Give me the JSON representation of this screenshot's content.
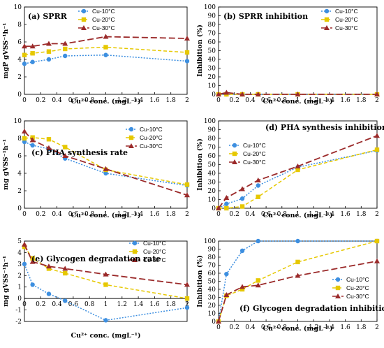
{
  "chart_data": [
    {
      "id": "a",
      "type": "line",
      "title": "(a) SPRR",
      "xlabel": "Cu²⁺ conc. (mgL⁻¹)",
      "ylabel": "mgP gVSS⁻¹h⁻¹",
      "xlim": [
        0,
        2
      ],
      "ylim": [
        0,
        10
      ],
      "xticks": [
        "0",
        "0.2",
        "0.4",
        "0.6",
        "0.8",
        "1",
        "1.2",
        "1.4",
        "1.6",
        "1.8",
        "2"
      ],
      "yticks": [
        "0",
        "2",
        "4",
        "6",
        "8",
        "10"
      ],
      "legend_position": "top-center",
      "grid": false,
      "x": [
        0,
        0.1,
        0.3,
        0.5,
        1,
        2
      ],
      "series": [
        {
          "name": "Cu-10°C",
          "values": [
            3.5,
            3.7,
            4.0,
            4.4,
            4.5,
            3.8
          ]
        },
        {
          "name": "Cu-20°C",
          "values": [
            4.5,
            4.7,
            4.9,
            5.2,
            5.4,
            4.8
          ]
        },
        {
          "name": "Cu-30°C",
          "values": [
            5.5,
            5.5,
            5.8,
            5.8,
            6.6,
            6.4
          ]
        }
      ]
    },
    {
      "id": "b",
      "type": "line",
      "title": "(b) SPRR inhibition",
      "xlabel": "Cu²⁺ conc. (mgL⁻¹)",
      "ylabel": "Inhibition (%)",
      "xlim": [
        0,
        2
      ],
      "ylim": [
        0,
        100
      ],
      "xticks": [
        "0",
        "0.2",
        "0.4",
        "0.6",
        "0.8",
        "1",
        "1.2",
        "1.4",
        "1.6",
        "1.8",
        "2"
      ],
      "yticks": [
        "0",
        "10",
        "20",
        "30",
        "40",
        "50",
        "60",
        "70",
        "80",
        "90",
        "100"
      ],
      "legend_position": "top-right",
      "grid": false,
      "x": [
        0,
        0.1,
        0.3,
        0.5,
        1,
        2
      ],
      "series": [
        {
          "name": "Cu-10°C",
          "values": [
            0,
            0,
            0,
            0,
            0,
            0
          ]
        },
        {
          "name": "Cu-20°C",
          "values": [
            0,
            0,
            0,
            0,
            0,
            0
          ]
        },
        {
          "name": "Cu-30°C",
          "values": [
            0,
            2,
            0,
            0,
            0,
            0
          ]
        }
      ]
    },
    {
      "id": "c",
      "type": "line",
      "title": "(c) PHA synthesis rate",
      "xlabel": "Cu²⁺ conc. (mgL⁻¹)",
      "ylabel": "mg gVSS⁻¹h⁻¹",
      "xlim": [
        0,
        2
      ],
      "ylim": [
        0,
        10
      ],
      "xticks": [
        "0",
        "0.2",
        "0.4",
        "0.6",
        "0.8",
        "1",
        "1.2",
        "1.4",
        "1.6",
        "1.8",
        "2"
      ],
      "yticks": [
        "0",
        "2",
        "4",
        "6",
        "8",
        "10"
      ],
      "legend_position": "top-right",
      "grid": false,
      "x": [
        0,
        0.1,
        0.3,
        0.5,
        1,
        2
      ],
      "series": [
        {
          "name": "Cu-10°C",
          "values": [
            7.6,
            7.2,
            6.8,
            5.7,
            4.0,
            2.6
          ]
        },
        {
          "name": "Cu-20°C",
          "values": [
            8.0,
            8.1,
            7.9,
            7.0,
            4.4,
            2.7
          ]
        },
        {
          "name": "Cu-30°C",
          "values": [
            8.8,
            7.8,
            6.9,
            6.0,
            4.5,
            1.5
          ]
        }
      ]
    },
    {
      "id": "d",
      "type": "line",
      "title": "(d) PHA synthesis inhibition",
      "xlabel": "Cu²⁺ conc. (mgL⁻¹)",
      "ylabel": "Inhibition (%)",
      "xlim": [
        0,
        2
      ],
      "ylim": [
        0,
        100
      ],
      "xticks": [
        "0",
        "0.2",
        "0.4",
        "0.6",
        "0.8",
        "1",
        "1.2",
        "1.4",
        "1.6",
        "1.8",
        "2"
      ],
      "yticks": [
        "0",
        "10",
        "20",
        "30",
        "40",
        "50",
        "60",
        "70",
        "80",
        "90",
        "100"
      ],
      "legend_position": "left",
      "grid": false,
      "x": [
        0,
        0.1,
        0.3,
        0.5,
        1,
        2
      ],
      "series": [
        {
          "name": "Cu-10°C",
          "values": [
            0,
            5,
            11,
            26,
            47,
            66
          ]
        },
        {
          "name": "Cu-20°C",
          "values": [
            0,
            0,
            2,
            13,
            44,
            67
          ]
        },
        {
          "name": "Cu-30°C",
          "values": [
            0,
            12,
            22,
            32,
            48,
            83
          ]
        }
      ]
    },
    {
      "id": "e",
      "type": "line",
      "title": "(e) Glycogen degradation rate",
      "xlabel": "Cu²⁺ conc. (mgL⁻¹)",
      "ylabel": "mg gVSS⁻¹h⁻¹",
      "xlim": [
        0,
        2
      ],
      "ylim": [
        -2,
        5
      ],
      "xticks": [
        "0",
        "0.2",
        "0.4",
        "0.6",
        "0.8",
        "1",
        "1.2",
        "1.4",
        "1.6",
        "1.8",
        "2"
      ],
      "yticks": [
        "-2",
        "-1",
        "0",
        "1",
        "2",
        "3",
        "4",
        "5"
      ],
      "legend_position": "top-right",
      "grid": false,
      "x": [
        0,
        0.1,
        0.3,
        0.5,
        1,
        2
      ],
      "series": [
        {
          "name": "Cu-10°C",
          "values": [
            3.0,
            1.2,
            0.4,
            -0.2,
            -1.9,
            -0.8
          ]
        },
        {
          "name": "Cu-20°C",
          "values": [
            4.5,
            3.5,
            2.6,
            2.2,
            1.2,
            0.0
          ]
        },
        {
          "name": "Cu-30°C",
          "values": [
            4.7,
            3.2,
            2.8,
            2.6,
            2.1,
            1.2
          ]
        }
      ]
    },
    {
      "id": "f",
      "type": "line",
      "title": "(f) Glycogen degradation inhibition",
      "xlabel": "Cu²⁺ conc. (mgL⁻¹)",
      "ylabel": "Inhibition (%)",
      "xlim": [
        0,
        2
      ],
      "ylim": [
        0,
        100
      ],
      "xticks": [
        "0",
        "0.2",
        "0.4",
        "0.6",
        "0.8",
        "1",
        "1.2",
        "1.4",
        "1.6",
        "1.8",
        "2"
      ],
      "yticks": [
        "0",
        "10",
        "20",
        "30",
        "40",
        "50",
        "60",
        "70",
        "80",
        "90",
        "100"
      ],
      "legend_position": "right",
      "grid": false,
      "x": [
        0,
        0.1,
        0.3,
        0.5,
        1,
        2
      ],
      "series": [
        {
          "name": "Cu-10°C",
          "values": [
            0,
            59,
            88,
            100,
            100,
            100
          ]
        },
        {
          "name": "Cu-20°C",
          "values": [
            0,
            32,
            40,
            51,
            74,
            100
          ]
        },
        {
          "name": "Cu-30°C",
          "values": [
            0,
            33,
            43,
            45,
            57,
            75
          ]
        }
      ]
    }
  ],
  "series_styles": [
    {
      "color": "#3d8fe0",
      "dash": "2,2",
      "marker": "circle"
    },
    {
      "color": "#e6c800",
      "dash": "5,3",
      "marker": "square"
    },
    {
      "color": "#9b2a2a",
      "dash": "9,4",
      "marker": "triangle"
    }
  ]
}
